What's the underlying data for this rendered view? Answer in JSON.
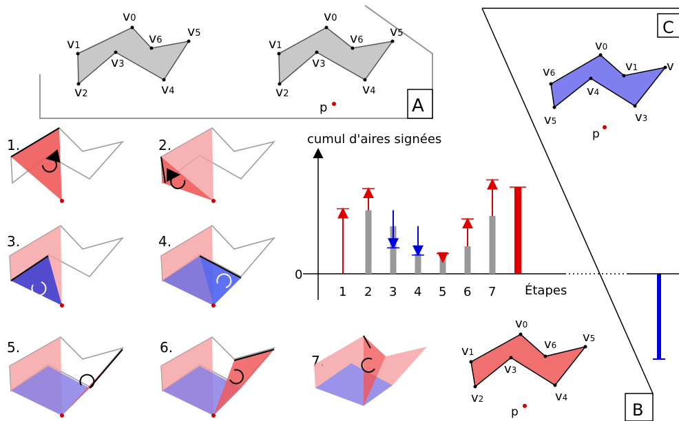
{
  "panels": {
    "A": {
      "tag": "A"
    },
    "B": {
      "tag": "B"
    },
    "C": {
      "tag": "C"
    }
  },
  "vertices": {
    "v0": "v",
    "s0": "0",
    "v1": "v",
    "s1": "1",
    "v2": "v",
    "s2": "2",
    "v3": "v",
    "s3": "3",
    "v4": "v",
    "s4": "4",
    "v5": "v",
    "s5": "5",
    "v6": "v",
    "s6": "6",
    "p": "p"
  },
  "steps": [
    "1.",
    "2.",
    "3.",
    "4.",
    "5.",
    "6.",
    "7."
  ],
  "chart": {
    "ylabel": "cumul d'aires signées",
    "xlabel": "Étapes",
    "zero": "0",
    "ticks": [
      "1",
      "2",
      "3",
      "4",
      "5",
      "6",
      "7"
    ]
  },
  "chart_data": {
    "type": "bar",
    "categories": [
      "1",
      "2",
      "3",
      "4",
      "5",
      "6",
      "7"
    ],
    "cumulative": [
      0,
      44,
      33,
      14,
      12,
      19,
      40
    ],
    "step_change": [
      45,
      15,
      -26,
      -20,
      2,
      19,
      25
    ],
    "total_positive": 60,
    "total_negative": -60,
    "colors": {
      "positive": "#e00000",
      "negative": "#0000e0",
      "bar": "#999999"
    }
  },
  "colors": {
    "polygon_fill": "#c8c8c8",
    "blue_fill": "#7f7ff0",
    "red_fill": "#f07070",
    "point": "#d00000"
  }
}
